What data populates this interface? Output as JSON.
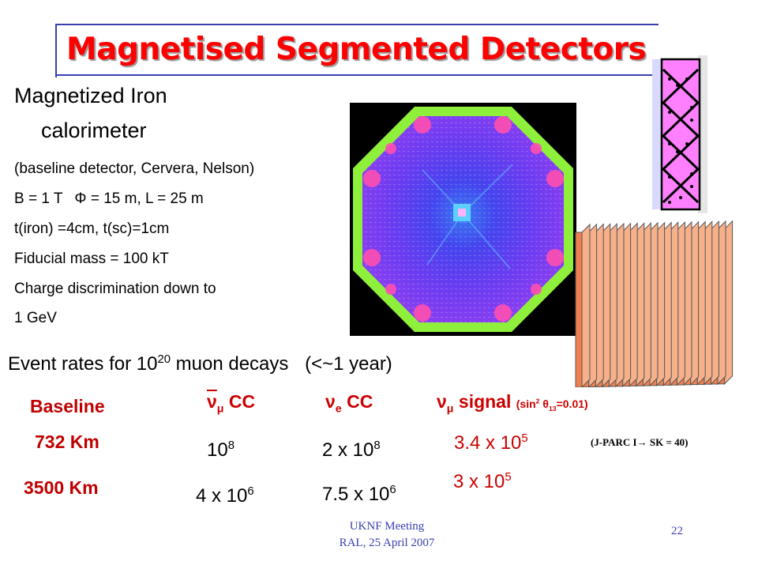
{
  "title": "Magnetised Segmented Detectors",
  "left_text": {
    "heading_line1": "Magnetized Iron",
    "heading_line2": "calorimeter",
    "items": [
      "(baseline detector, Cervera, Nelson)",
      "B = 1 T",
      "= 15 m, L = 25 m",
      "t(iron) =4cm, t(sc)=1cm",
      "Fiducial mass = 100 kT",
      "Charge discrimination down to",
      "1 GeV"
    ],
    "phi_symbol": "Φ"
  },
  "event_rates": {
    "prefix": "Event rates for 10",
    "exponent": "20",
    "suffix": " muon decays",
    "note": "(<~1 year)"
  },
  "table": {
    "baseline_label": "Baseline",
    "col1": {
      "nu": "ν",
      "sub": "μ",
      "text": " CC"
    },
    "col2": {
      "nu": "ν",
      "sub": "e",
      "text": " CC"
    },
    "col3": {
      "nu": "ν",
      "sub": "μ",
      "text": " signal",
      "extra_pre": "(sin",
      "extra_sup": "2",
      "extra_theta": " θ",
      "extra_sub": "13",
      "extra_post": "=0.01)"
    },
    "rows": [
      {
        "label": "732 Km",
        "v1_base": "10",
        "v1_exp": "8",
        "v2_base": "2 x 10",
        "v2_exp": "8",
        "v3_base": "3.4 x 10",
        "v3_exp": "5"
      },
      {
        "label": "3500 Km",
        "v1_base": "4 x 10",
        "v1_exp": "6",
        "v2_base": "7.5 x 10",
        "v2_exp": "6",
        "v3_base": "3 x 10",
        "v3_exp": "5"
      }
    ],
    "jparc_note_pre": "(J-PARC I",
    "jparc_note_post": " SK = 40)",
    "arrow_symbol": "→"
  },
  "footer": {
    "line1": "UKNF Meeting",
    "line2": "RAL, 25 April 2007",
    "page": "22"
  },
  "colors": {
    "title": "#ff0000",
    "frame": "#3a3fb0",
    "plates": "#f08050",
    "baseline_labels": "#c00000",
    "strips_fill": "#ff80ff"
  }
}
